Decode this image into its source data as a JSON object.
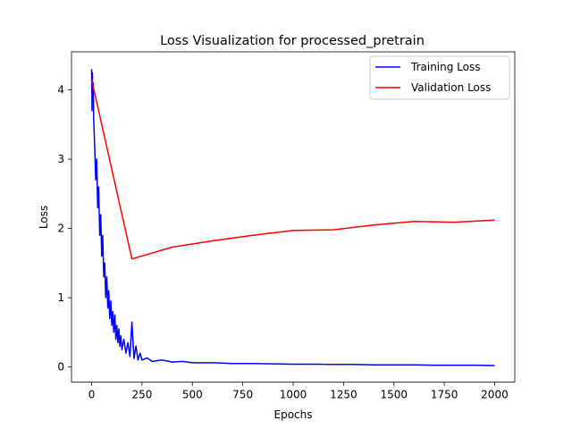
{
  "chart_data": {
    "type": "line",
    "title": "Loss Visualization for processed_pretrain",
    "xlabel": "Epochs",
    "ylabel": "Loss",
    "xlim": [
      -100,
      2100
    ],
    "ylim": [
      -0.22,
      4.55
    ],
    "xticks": [
      0,
      250,
      500,
      750,
      1000,
      1250,
      1500,
      1750,
      2000
    ],
    "yticks": [
      0,
      1,
      2,
      3,
      4
    ],
    "grid": false,
    "legend": "top-right",
    "series": [
      {
        "name": "Training Loss",
        "color": "#0000ff",
        "x": [
          0,
          2,
          4,
          6,
          8,
          10,
          15,
          20,
          25,
          30,
          35,
          40,
          45,
          50,
          55,
          60,
          65,
          70,
          75,
          80,
          85,
          90,
          95,
          100,
          105,
          110,
          115,
          120,
          125,
          130,
          135,
          140,
          145,
          150,
          160,
          170,
          180,
          190,
          200,
          210,
          220,
          230,
          240,
          250,
          275,
          300,
          350,
          400,
          450,
          500,
          600,
          700,
          800,
          900,
          1000,
          1100,
          1200,
          1300,
          1400,
          1500,
          1600,
          1700,
          1800,
          1900,
          2000
        ],
        "values": [
          4.3,
          3.7,
          4.25,
          3.8,
          4.1,
          3.6,
          3.2,
          2.7,
          3.0,
          2.3,
          2.6,
          1.9,
          2.2,
          1.6,
          1.9,
          1.3,
          1.5,
          1.0,
          1.3,
          0.85,
          1.1,
          0.7,
          0.95,
          0.6,
          0.8,
          0.5,
          0.75,
          0.4,
          0.6,
          0.35,
          0.55,
          0.3,
          0.45,
          0.25,
          0.4,
          0.2,
          0.35,
          0.15,
          0.65,
          0.12,
          0.3,
          0.1,
          0.2,
          0.1,
          0.13,
          0.08,
          0.1,
          0.07,
          0.08,
          0.06,
          0.06,
          0.05,
          0.05,
          0.045,
          0.04,
          0.04,
          0.035,
          0.035,
          0.03,
          0.03,
          0.03,
          0.025,
          0.025,
          0.025,
          0.02
        ]
      },
      {
        "name": "Validation Loss",
        "color": "#ff0000",
        "x": [
          0,
          200,
          400,
          600,
          800,
          1000,
          1200,
          1400,
          1600,
          1800,
          2000
        ],
        "values": [
          4.15,
          1.56,
          1.73,
          1.82,
          1.9,
          1.97,
          1.98,
          2.05,
          2.1,
          2.09,
          2.12
        ]
      }
    ]
  }
}
